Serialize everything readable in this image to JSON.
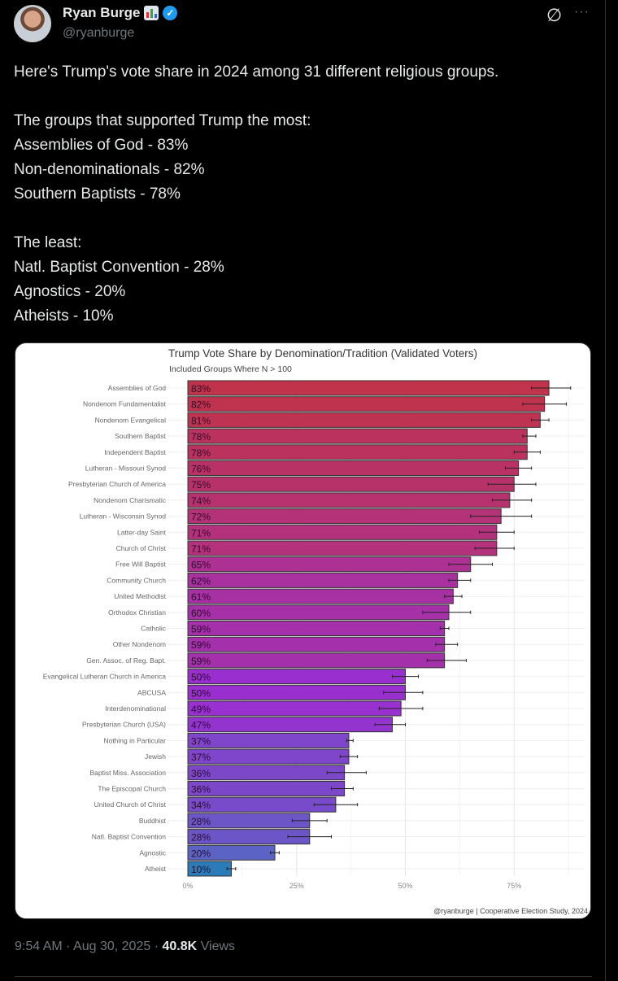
{
  "author": {
    "name": "Ryan Burge",
    "handle": "@ryanburge"
  },
  "tweet": {
    "lines": [
      "Here's Trump's vote share in 2024 among 31 different religious groups.",
      "",
      "The groups that supported Trump the most:",
      "Assemblies of God - 83%",
      "Non-denominationals - 82%",
      "Southern Baptists - 78%",
      "",
      "The least:",
      "Natl. Baptist Convention - 28%",
      "Agnostics - 20%",
      "Atheists - 10%"
    ],
    "time": "9:54 AM",
    "date": "Aug 30, 2025",
    "views_count": "40.8K",
    "views_label": "Views",
    "sep": "·"
  },
  "chart_data": {
    "type": "bar",
    "orientation": "horizontal",
    "title": "Trump Vote Share by Denomination/Tradition (Validated Voters)",
    "subtitle": "Included Groups Where N > 100",
    "caption": "@ryanburge | Cooperative Election Study, 2024",
    "xlim": [
      0,
      90
    ],
    "xticks": [
      0,
      25,
      50,
      75
    ],
    "xtick_labels": [
      "0%",
      "25%",
      "50%",
      "75%"
    ],
    "grid": true,
    "categories": [
      "Assemblies of God",
      "Nondenom Fundamentalist",
      "Nondenom Evangelical",
      "Southern Baptist",
      "Independent Baptist",
      "Lutheran - Missouri Synod",
      "Presbyterian Church of America",
      "Nondenom Charismatic",
      "Lutheran - Wisconsin Synod",
      "Latter-day Saint",
      "Church of Christ",
      "Free Will Baptist",
      "Community Church",
      "United Methodist",
      "Orthodox Christian",
      "Catholic",
      "Other Nondenom",
      "Gen. Assoc. of Reg. Bapt.",
      "Evangelical Lutheran Church in America",
      "ABCUSA",
      "Interdenominational",
      "Presbyterian Church (USA)",
      "Nothing in Particular",
      "Jewish",
      "Baptist Miss. Association",
      "The Episcopal Church",
      "United Church of Christ",
      "Buddhist",
      "Natl. Baptist Convention",
      "Agnostic",
      "Atheist"
    ],
    "values": [
      83,
      82,
      81,
      78,
      78,
      76,
      75,
      74,
      72,
      71,
      71,
      65,
      62,
      61,
      60,
      59,
      59,
      59,
      50,
      50,
      49,
      47,
      37,
      37,
      36,
      36,
      34,
      28,
      28,
      20,
      10
    ],
    "value_labels": [
      "83%",
      "82%",
      "81%",
      "78%",
      "78%",
      "76%",
      "75%",
      "74%",
      "72%",
      "71%",
      "71%",
      "65%",
      "62%",
      "61%",
      "60%",
      "59%",
      "59%",
      "59%",
      "50%",
      "50%",
      "49%",
      "47%",
      "37%",
      "37%",
      "36%",
      "36%",
      "34%",
      "28%",
      "28%",
      "20%",
      "10%"
    ],
    "ci_low": [
      79,
      77,
      79,
      77,
      75,
      73,
      69,
      70,
      65,
      67,
      66,
      60,
      60,
      59,
      54,
      58,
      57,
      55,
      47,
      45,
      44,
      43,
      36.5,
      35,
      32,
      33,
      29,
      24,
      23,
      19,
      9
    ],
    "ci_high": [
      88,
      87,
      83,
      80,
      81,
      79,
      80,
      79,
      79,
      75,
      75,
      70,
      65,
      63,
      65,
      60,
      62,
      64,
      53,
      54,
      54,
      50,
      38,
      39,
      41,
      38,
      39,
      32,
      33,
      21,
      11
    ],
    "colors": {
      "high": "#c1334a",
      "mid": "#9a2fd0",
      "low": "#5b63c4",
      "lowest": "#2b7bb9"
    }
  }
}
